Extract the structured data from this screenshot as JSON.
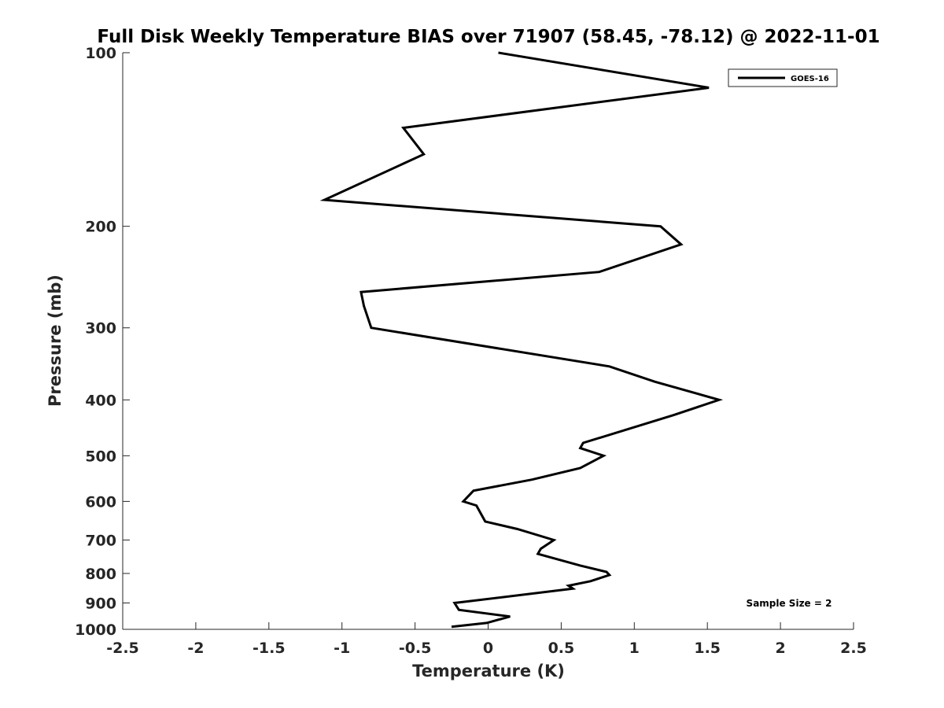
{
  "chart_data": {
    "type": "line",
    "title": "Full Disk Weekly Temperature BIAS over 71907 (58.45, -78.12) @ 2022-11-01",
    "xlabel": "Temperature (K)",
    "ylabel": "Pressure (mb)",
    "xlim": [
      -2.5,
      2.5
    ],
    "ylim": [
      100,
      1000
    ],
    "y_scale": "log",
    "y_reversed": true,
    "x_ticks": [
      "-2.5",
      "-2",
      "-1.5",
      "-1",
      "-0.5",
      "0",
      "0.5",
      "1",
      "1.5",
      "2",
      "2.5"
    ],
    "y_ticks": [
      "100",
      "200",
      "300",
      "400",
      "500",
      "600",
      "700",
      "800",
      "900",
      "1000"
    ],
    "legend_position": "top-right",
    "annotation": "Sample Size = 2",
    "series": [
      {
        "name": "GOES-16",
        "color": "#000000",
        "points": [
          {
            "x": 0.07,
            "p": 100
          },
          {
            "x": 1.51,
            "p": 115
          },
          {
            "x": -0.58,
            "p": 135
          },
          {
            "x": -0.44,
            "p": 150
          },
          {
            "x": -1.12,
            "p": 180
          },
          {
            "x": 1.18,
            "p": 200
          },
          {
            "x": 1.32,
            "p": 215
          },
          {
            "x": 0.76,
            "p": 240
          },
          {
            "x": -0.87,
            "p": 260
          },
          {
            "x": -0.85,
            "p": 275
          },
          {
            "x": -0.8,
            "p": 300
          },
          {
            "x": 0.83,
            "p": 350
          },
          {
            "x": 1.14,
            "p": 372
          },
          {
            "x": 1.58,
            "p": 400
          },
          {
            "x": 1.27,
            "p": 425
          },
          {
            "x": 0.65,
            "p": 475
          },
          {
            "x": 0.63,
            "p": 485
          },
          {
            "x": 0.79,
            "p": 500
          },
          {
            "x": 0.63,
            "p": 525
          },
          {
            "x": 0.3,
            "p": 550
          },
          {
            "x": -0.1,
            "p": 575
          },
          {
            "x": -0.17,
            "p": 600
          },
          {
            "x": -0.08,
            "p": 610
          },
          {
            "x": -0.02,
            "p": 650
          },
          {
            "x": 0.2,
            "p": 670
          },
          {
            "x": 0.45,
            "p": 700
          },
          {
            "x": 0.36,
            "p": 725
          },
          {
            "x": 0.34,
            "p": 740
          },
          {
            "x": 0.63,
            "p": 775
          },
          {
            "x": 0.81,
            "p": 795
          },
          {
            "x": 0.83,
            "p": 805
          },
          {
            "x": 0.7,
            "p": 825
          },
          {
            "x": 0.55,
            "p": 840
          },
          {
            "x": 0.58,
            "p": 850
          },
          {
            "x": -0.23,
            "p": 900
          },
          {
            "x": -0.2,
            "p": 925
          },
          {
            "x": 0.15,
            "p": 950
          },
          {
            "x": -0.01,
            "p": 975
          },
          {
            "x": -0.25,
            "p": 990
          }
        ]
      }
    ]
  }
}
